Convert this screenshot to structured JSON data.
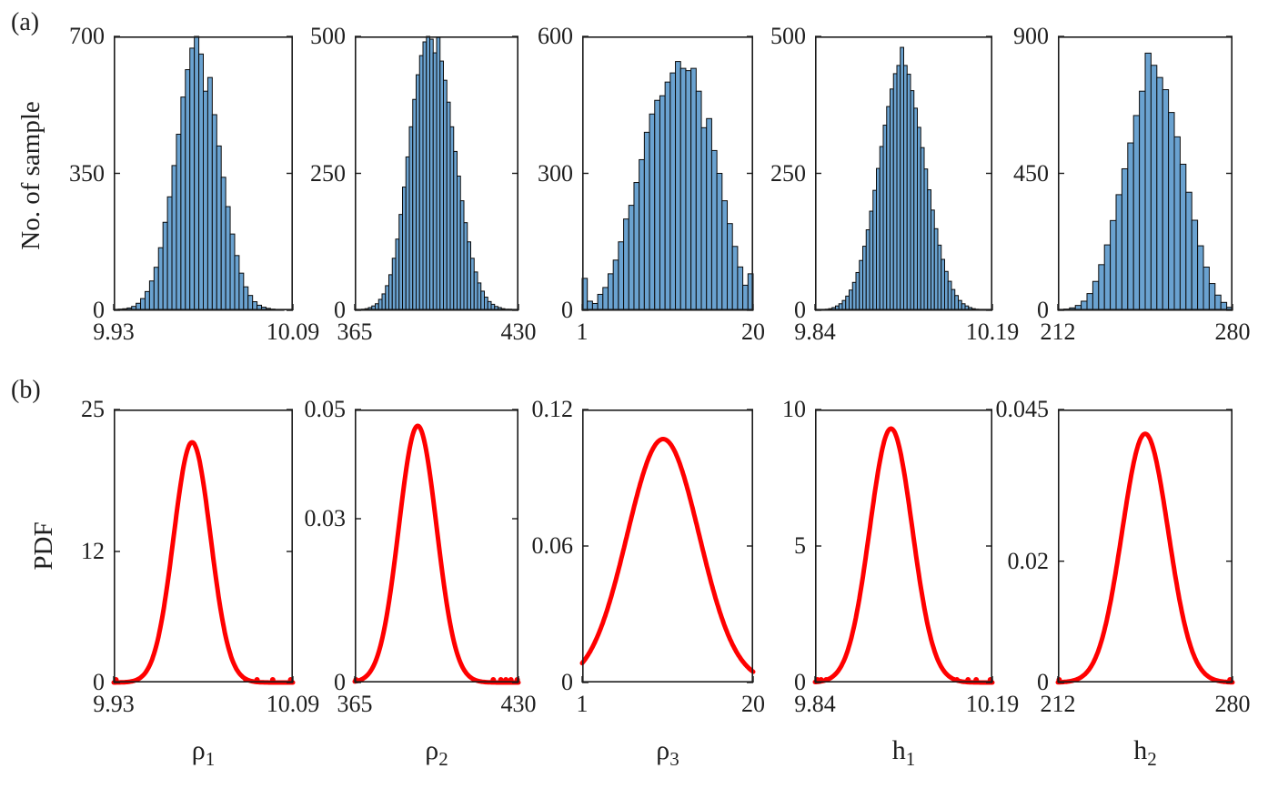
{
  "figure": {
    "panel_a_label": "(a)",
    "panel_b_label": "(b)",
    "row_a_ylabel": "No. of sample",
    "row_b_ylabel": "PDF",
    "colors": {
      "bar_fill": "#6AA2D0",
      "bar_edge": "#0b0b0b",
      "curve": "#FF0000",
      "axis": "#1a1a1a",
      "text": "#1f1f1f"
    }
  },
  "chart_data": [
    {
      "id": "rho1",
      "param_base": "ρ",
      "param_sub": "1",
      "histogram": {
        "type": "bar",
        "xlim": [
          9.93,
          10.09
        ],
        "x_ticks": [
          "9.93",
          "10.09"
        ],
        "ylim": [
          0,
          700
        ],
        "y_ticks": [
          "0",
          "350",
          "700"
        ],
        "bins": [
          0,
          3,
          4,
          6,
          10,
          18,
          30,
          48,
          75,
          110,
          160,
          225,
          290,
          370,
          450,
          545,
          615,
          670,
          700,
          655,
          560,
          595,
          500,
          420,
          340,
          265,
          195,
          140,
          95,
          60,
          38,
          22,
          13,
          8,
          5,
          3,
          2,
          1,
          0,
          0
        ]
      },
      "pdf": {
        "type": "line",
        "xlim": [
          9.93,
          10.09
        ],
        "x_ticks": [
          "9.93",
          "10.09"
        ],
        "ylim": [
          0,
          25
        ],
        "y_ticks": [
          "0",
          "12",
          "25"
        ],
        "gaussian": {
          "mean": 10.0,
          "sigma": 0.0165,
          "peak": 22
        },
        "baseline_dots": [
          9.932,
          10.048,
          10.058,
          10.072,
          10.088
        ]
      }
    },
    {
      "id": "rho2",
      "param_base": "ρ",
      "param_sub": "2",
      "histogram": {
        "type": "bar",
        "xlim": [
          365,
          430
        ],
        "x_ticks": [
          "365",
          "430"
        ],
        "ylim": [
          0,
          500
        ],
        "y_ticks": [
          "0",
          "250",
          "500"
        ],
        "bins": [
          0,
          1,
          2,
          3,
          5,
          8,
          12,
          20,
          30,
          45,
          65,
          95,
          130,
          175,
          225,
          280,
          335,
          385,
          430,
          465,
          490,
          500,
          495,
          470,
          498,
          455,
          420,
          380,
          335,
          290,
          245,
          200,
          160,
          125,
          95,
          70,
          50,
          35,
          24,
          16,
          11,
          7,
          5,
          3,
          2,
          2,
          1,
          0
        ]
      },
      "pdf": {
        "type": "line",
        "xlim": [
          365,
          430
        ],
        "x_ticks": [
          "365",
          "430"
        ],
        "ylim": [
          0,
          0.05
        ],
        "y_ticks": [
          "0",
          "0.03",
          "0.05"
        ],
        "gaussian": {
          "mean": 390,
          "sigma": 7.5,
          "peak": 0.047
        },
        "baseline_dots": [
          365.5,
          420,
          423,
          425,
          427,
          429.5
        ]
      }
    },
    {
      "id": "rho3",
      "param_base": "ρ",
      "param_sub": "3",
      "histogram": {
        "type": "bar",
        "xlim": [
          1,
          20
        ],
        "x_ticks": [
          "1",
          "20"
        ],
        "ylim": [
          0,
          600
        ],
        "y_ticks": [
          "0",
          "300",
          "600"
        ],
        "bins": [
          70,
          20,
          15,
          35,
          50,
          80,
          110,
          150,
          200,
          230,
          280,
          330,
          390,
          430,
          460,
          470,
          500,
          520,
          545,
          530,
          525,
          530,
          480,
          400,
          420,
          350,
          300,
          240,
          190,
          140,
          95,
          55,
          80
        ]
      },
      "pdf": {
        "type": "line",
        "xlim": [
          1,
          20
        ],
        "x_ticks": [
          "1",
          "20"
        ],
        "ylim": [
          0,
          0.12
        ],
        "y_ticks": [
          "0",
          "0.06",
          "0.12"
        ],
        "gaussian": {
          "mean": 10.0,
          "sigma": 4.0,
          "peak": 0.107
        },
        "baseline_dots": []
      }
    },
    {
      "id": "h1",
      "param_base": "h",
      "param_sub": "1",
      "histogram": {
        "type": "bar",
        "xlim": [
          9.84,
          10.19
        ],
        "x_ticks": [
          "9.84",
          "10.19"
        ],
        "ylim": [
          0,
          500
        ],
        "y_ticks": [
          "0",
          "250",
          "500"
        ],
        "bins": [
          0,
          1,
          1,
          2,
          3,
          5,
          8,
          12,
          18,
          26,
          37,
          51,
          69,
          91,
          117,
          147,
          181,
          219,
          259,
          299,
          338,
          372,
          404,
          432,
          447,
          480,
          447,
          431,
          401,
          369,
          334,
          297,
          258,
          220,
          183,
          149,
          119,
          93,
          71,
          53,
          38,
          27,
          18,
          12,
          8,
          5,
          3,
          2,
          1,
          1,
          0,
          0
        ]
      },
      "pdf": {
        "type": "line",
        "xlim": [
          9.84,
          10.19
        ],
        "x_ticks": [
          "9.84",
          "10.19"
        ],
        "ylim": [
          0,
          10
        ],
        "y_ticks": [
          "0",
          "5",
          "10"
        ],
        "gaussian": {
          "mean": 9.99,
          "sigma": 0.042,
          "peak": 9.3
        },
        "baseline_dots": [
          9.845,
          9.852,
          9.862,
          10.12,
          10.142,
          10.158,
          10.186
        ]
      }
    },
    {
      "id": "h2",
      "param_base": "h",
      "param_sub": "2",
      "histogram": {
        "type": "bar",
        "xlim": [
          212,
          280
        ],
        "x_ticks": [
          "212",
          "280"
        ],
        "ylim": [
          0,
          900
        ],
        "y_ticks": [
          "0",
          "450",
          "900"
        ],
        "bins": [
          2,
          4,
          8,
          16,
          30,
          55,
          95,
          150,
          215,
          295,
          380,
          465,
          550,
          640,
          720,
          845,
          805,
          765,
          725,
          650,
          570,
          480,
          388,
          296,
          212,
          142,
          88,
          50,
          26,
          10
        ]
      },
      "pdf": {
        "type": "line",
        "xlim": [
          212,
          280
        ],
        "x_ticks": [
          "212",
          "280"
        ],
        "ylim": [
          0,
          0.045
        ],
        "y_ticks": [
          "0",
          "0.02",
          "0.045"
        ],
        "gaussian": {
          "mean": 246,
          "sigma": 9.0,
          "peak": 0.041
        },
        "baseline_dots": [
          212.5,
          279
        ]
      }
    }
  ]
}
